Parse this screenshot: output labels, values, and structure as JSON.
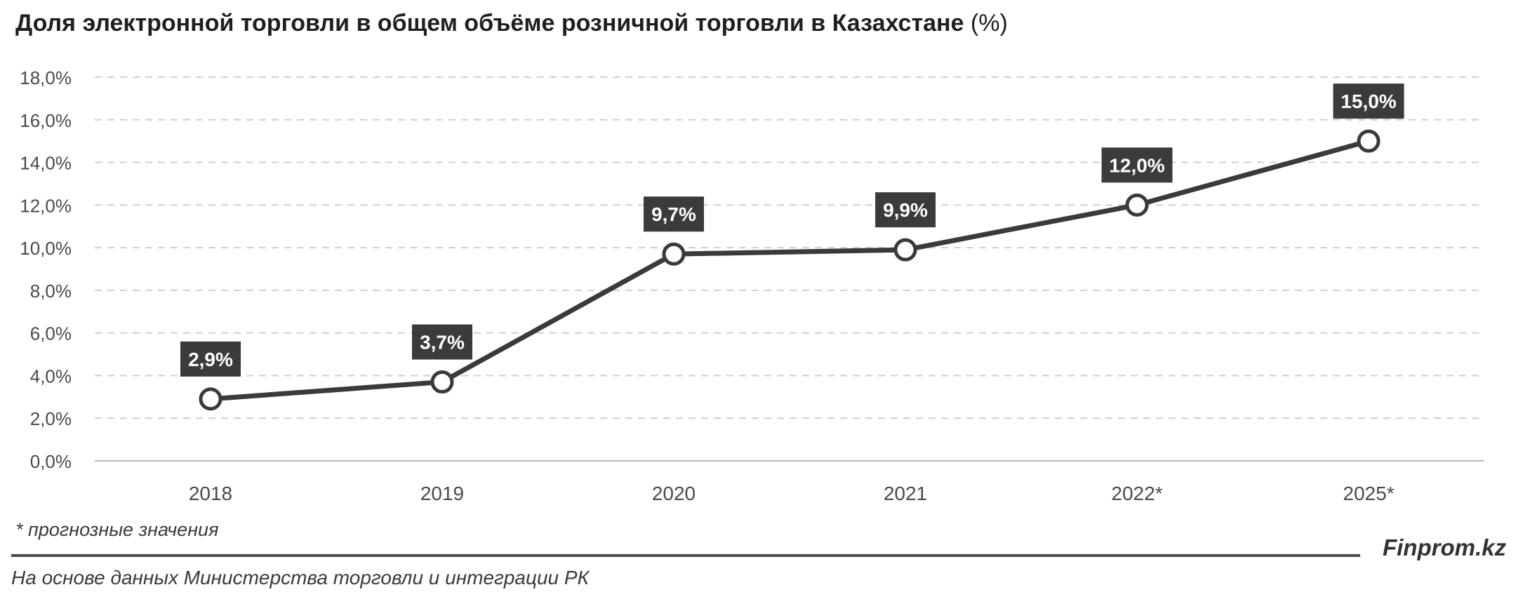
{
  "title_main": "Доля электронной торговли в общем объёме розничной торговли в Казахстане",
  "title_unit": "(%)",
  "note": "* прогнозные значения",
  "brand": "Finprom.kz",
  "source": "На основе данных Министерства торговли и интеграции РК",
  "chart_data": {
    "type": "line",
    "categories": [
      "2018",
      "2019",
      "2020",
      "2021",
      "2022*",
      "2025*"
    ],
    "series": [
      {
        "values": [
          2.9,
          3.7,
          9.7,
          9.9,
          12.0,
          15.0
        ],
        "labels": [
          "2,9%",
          "3,7%",
          "9,7%",
          "9,9%",
          "12,0%",
          "15,0%"
        ]
      }
    ],
    "y_ticks": [
      0,
      2,
      4,
      6,
      8,
      10,
      12,
      14,
      16,
      18
    ],
    "y_tick_labels": [
      "0,0%",
      "2,0%",
      "4,0%",
      "6,0%",
      "8,0%",
      "10,0%",
      "12,0%",
      "14,0%",
      "16,0%",
      "18,0%"
    ],
    "ylim": [
      0,
      18
    ],
    "grid": true,
    "colors": {
      "line": "#3a3a3a",
      "marker_fill": "#ffffff",
      "label_bg": "#3b3b3b",
      "label_text": "#ffffff",
      "grid": "#cfcfcf"
    }
  }
}
